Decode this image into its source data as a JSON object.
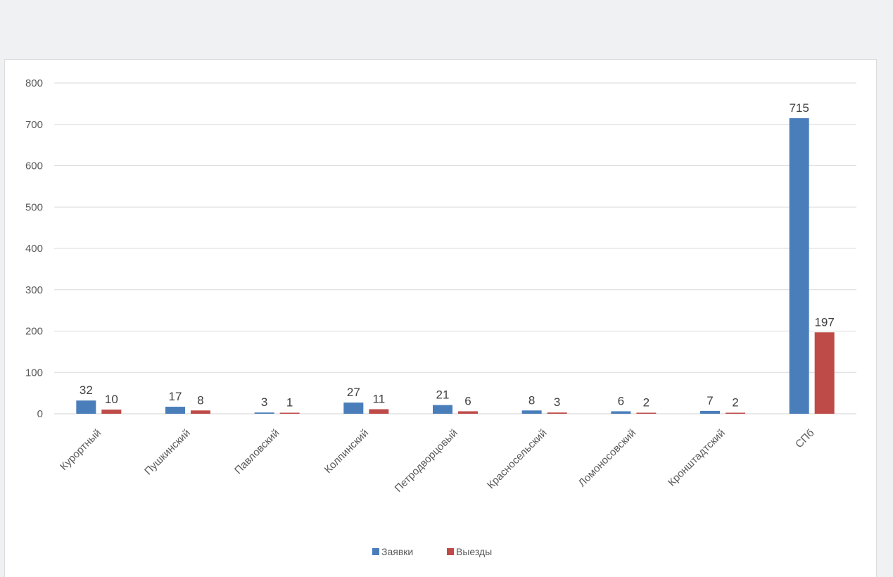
{
  "chart_data": {
    "type": "bar",
    "categories": [
      "Курортный",
      "Пушкинский",
      "Павловский",
      "Колпинский",
      "Петродворцовый",
      "Красносельский",
      "Ломоносовский",
      "Кронштадтский",
      "СПб"
    ],
    "series": [
      {
        "name": "Заявки",
        "values": [
          32,
          17,
          3,
          27,
          21,
          8,
          6,
          7,
          715
        ],
        "color": "#4a7ebb"
      },
      {
        "name": "Выезды",
        "values": [
          10,
          8,
          1,
          11,
          6,
          3,
          2,
          2,
          197
        ],
        "color": "#be4b48"
      }
    ],
    "yticks": [
      "0",
      "100",
      "200",
      "300",
      "400",
      "500",
      "600",
      "700",
      "800"
    ],
    "ylim": [
      0,
      800
    ],
    "grid": true,
    "legend": "bottom",
    "title": "",
    "xlabel": "",
    "ylabel": ""
  }
}
